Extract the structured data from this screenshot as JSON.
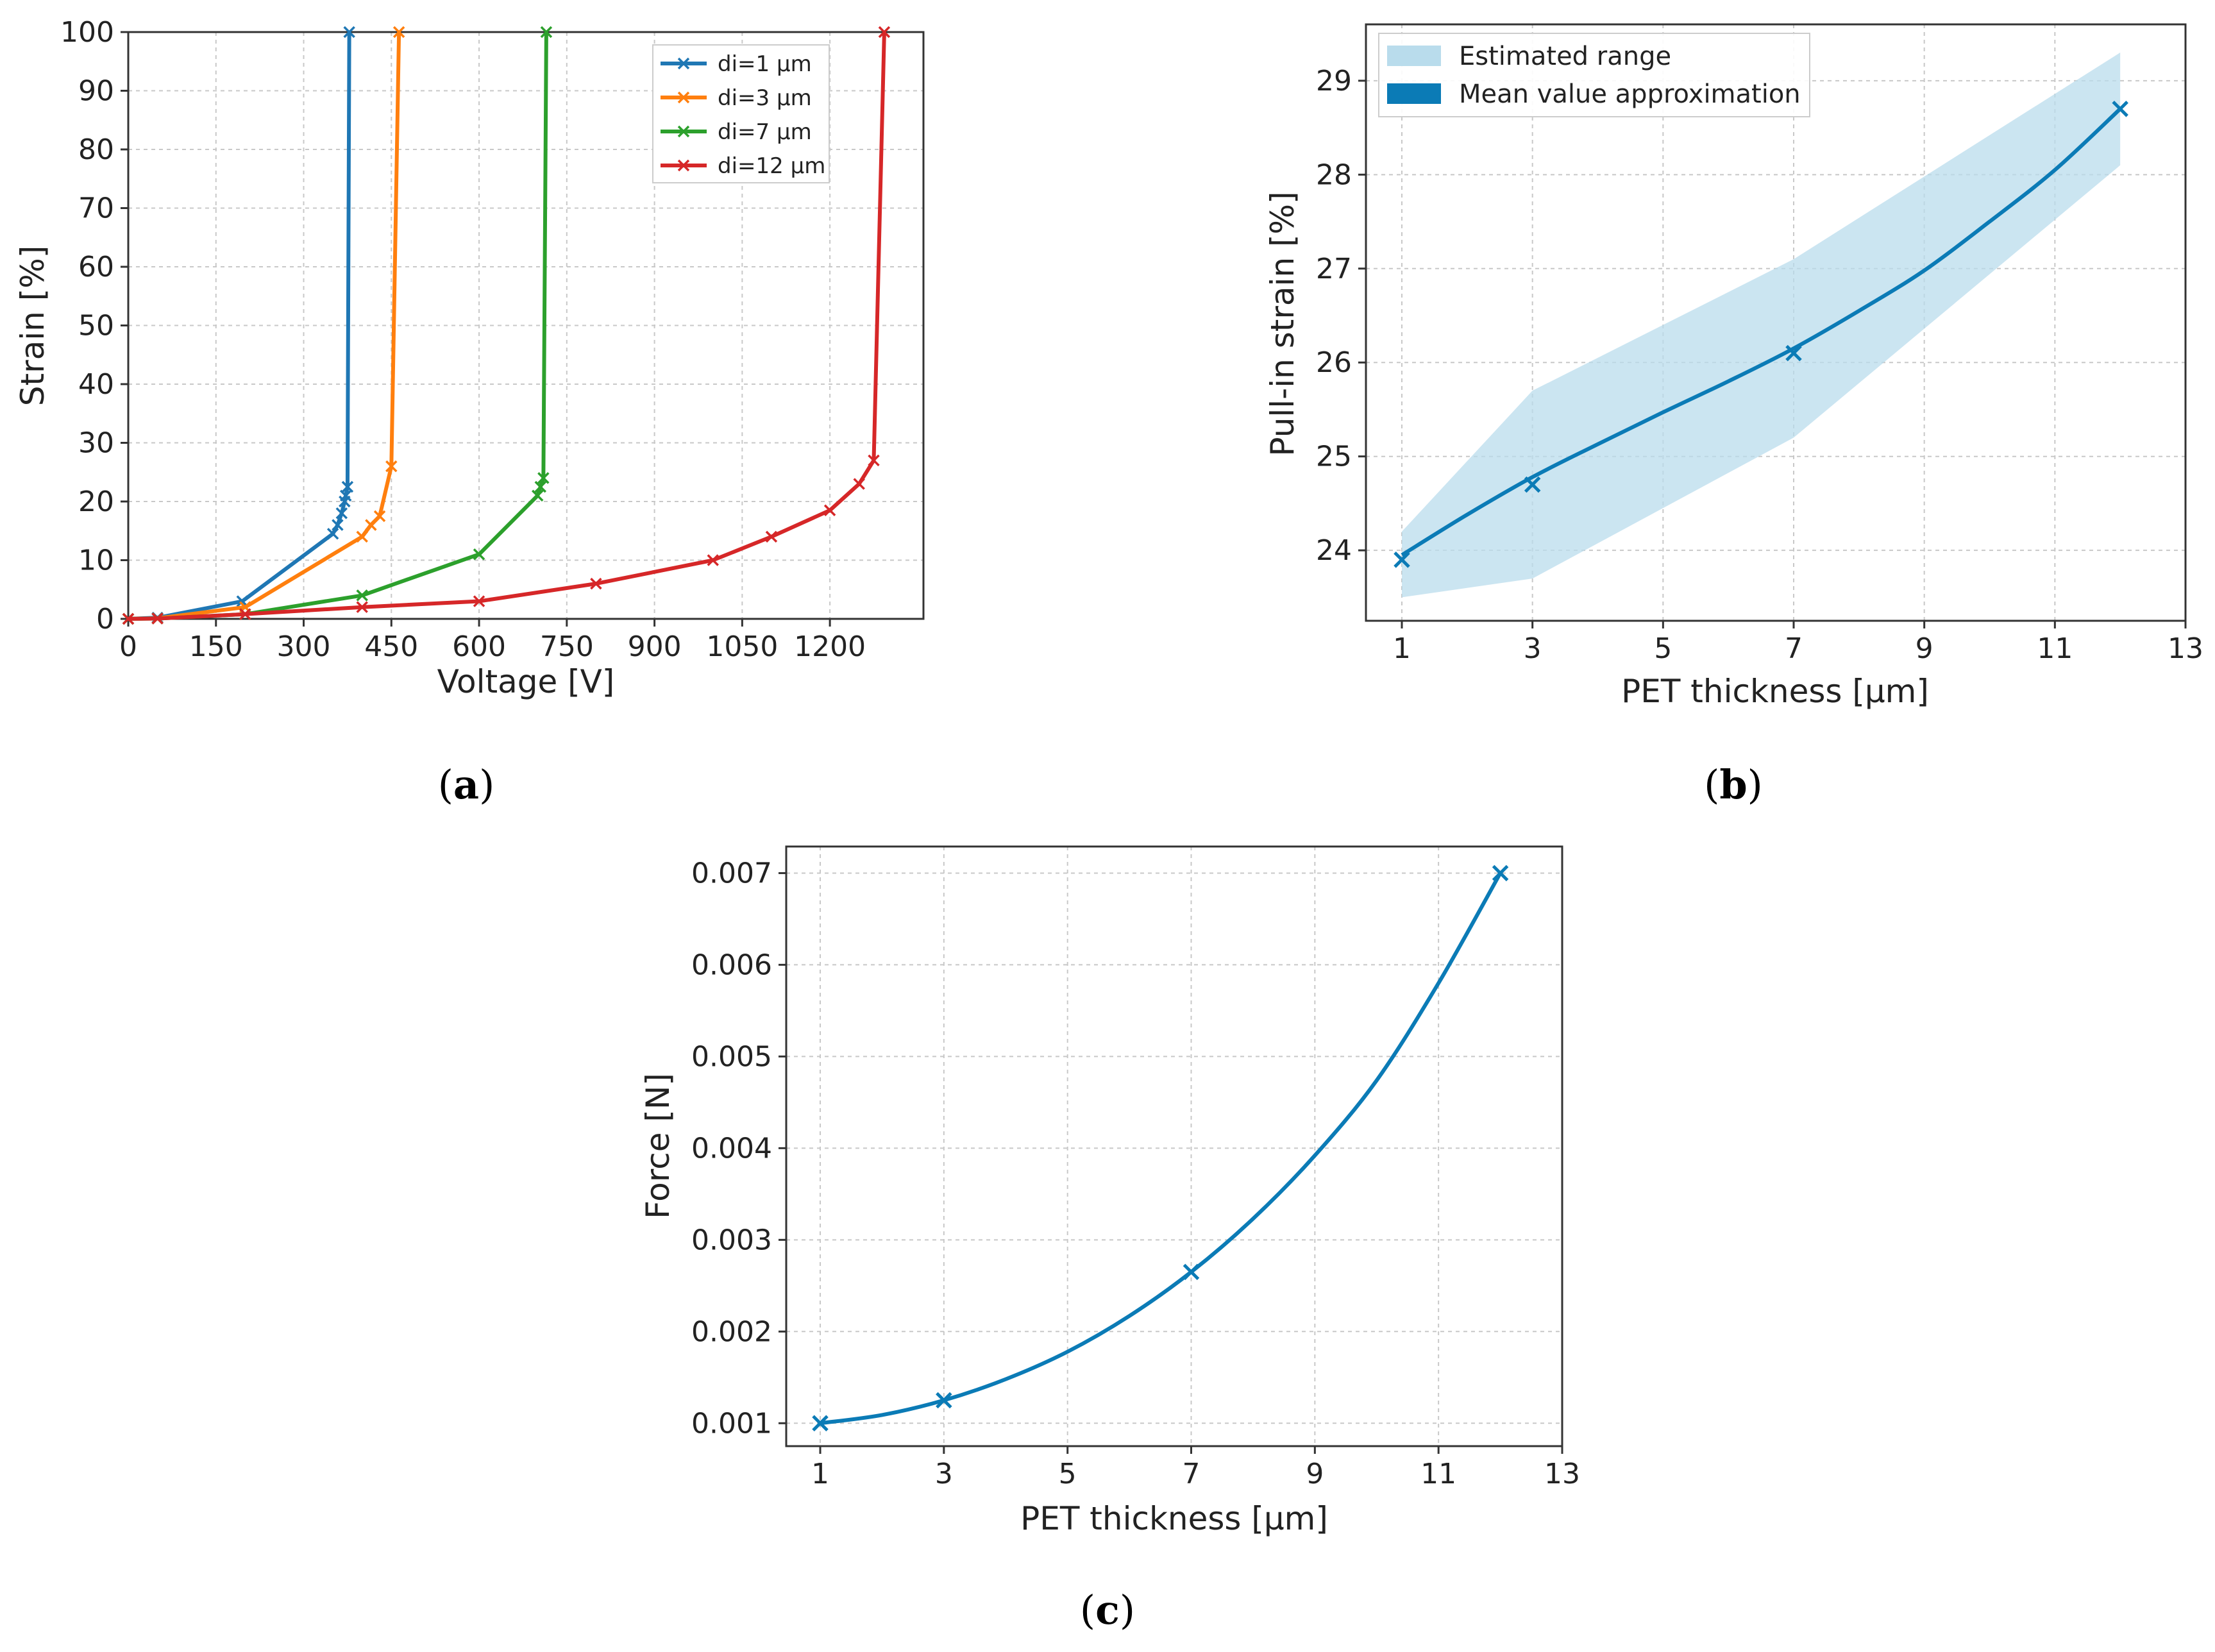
{
  "figure": {
    "colors": {
      "blue": "#1f77b4",
      "orange": "#ff7f0e",
      "green": "#2ca02c",
      "red": "#d62728",
      "fit": "#0b7bb6",
      "band": "#b9dcec"
    },
    "captions": {
      "a": "a",
      "b": "b",
      "c": "c"
    }
  },
  "chart_data": [
    {
      "id": "a",
      "type": "line",
      "xlabel": "Voltage [V]",
      "ylabel": "Strain [%]",
      "xlim": [
        0,
        1360
      ],
      "ylim": [
        0,
        100
      ],
      "xticks": [
        0,
        150,
        300,
        450,
        600,
        750,
        900,
        1050,
        1200
      ],
      "yticks": [
        0,
        10,
        20,
        30,
        40,
        50,
        60,
        70,
        80,
        90,
        100
      ],
      "grid": true,
      "legend_position": "top-right",
      "series": [
        {
          "name": "di=1 μm",
          "color": "#1f77b4",
          "x": [
            0,
            50,
            195,
            350,
            358,
            365,
            370,
            372,
            375,
            378
          ],
          "y": [
            0,
            0.2,
            3,
            14.5,
            16,
            18,
            20,
            21,
            22.5,
            100
          ]
        },
        {
          "name": "di=3 μm",
          "color": "#ff7f0e",
          "x": [
            0,
            50,
            200,
            400,
            415,
            430,
            450,
            463
          ],
          "y": [
            0,
            0.1,
            2,
            14,
            16,
            17.5,
            26,
            100
          ]
        },
        {
          "name": "di=7 μm",
          "color": "#2ca02c",
          "x": [
            0,
            50,
            200,
            400,
            600,
            700,
            705,
            710,
            715
          ],
          "y": [
            0,
            0.05,
            0.8,
            4,
            11,
            21,
            22.5,
            24,
            100
          ]
        },
        {
          "name": "di=12 μm",
          "color": "#d62728",
          "x": [
            0,
            50,
            200,
            400,
            600,
            800,
            1000,
            1100,
            1200,
            1250,
            1275,
            1293
          ],
          "y": [
            0,
            0.05,
            0.8,
            2,
            3,
            6,
            10,
            14,
            18.5,
            23,
            27,
            100
          ]
        }
      ]
    },
    {
      "id": "b",
      "type": "line",
      "xlabel": "PET thickness [μm]",
      "ylabel": "Pull-in strain [%]",
      "xlim": [
        0.45,
        13
      ],
      "ylim": [
        23.25,
        29.6
      ],
      "xticks": [
        1,
        3,
        5,
        7,
        9,
        11,
        13
      ],
      "yticks": [
        24,
        25,
        26,
        27,
        28,
        29
      ],
      "grid": true,
      "legend_position": "top-left",
      "legend": [
        "Estimated range",
        "Mean value approximation"
      ],
      "points": {
        "x": [
          1,
          3,
          7,
          12
        ],
        "y": [
          23.9,
          24.7,
          26.1,
          28.7
        ]
      },
      "band_lower": {
        "x": [
          1,
          3,
          7,
          12
        ],
        "y": [
          23.5,
          23.7,
          25.2,
          28.1
        ]
      },
      "band_upper": {
        "x": [
          1,
          3,
          7,
          12
        ],
        "y": [
          24.2,
          25.7,
          27.1,
          29.3
        ]
      },
      "fit_curve": {
        "x": [
          1,
          2,
          3,
          4,
          5,
          6,
          7,
          8,
          9,
          10,
          11,
          12
        ],
        "y": [
          23.95,
          24.38,
          24.78,
          25.13,
          25.47,
          25.8,
          26.15,
          26.55,
          26.98,
          27.5,
          28.05,
          28.7
        ]
      }
    },
    {
      "id": "c",
      "type": "line",
      "xlabel": "PET thickness [μm]",
      "ylabel": "Force [N]",
      "xlim": [
        0.45,
        13
      ],
      "ylim": [
        0.00075,
        0.00729
      ],
      "xticks": [
        1,
        3,
        5,
        7,
        9,
        11,
        13
      ],
      "yticks": [
        0.001,
        0.002,
        0.003,
        0.004,
        0.005,
        0.006,
        0.007
      ],
      "grid": true,
      "points": {
        "x": [
          1,
          3,
          7,
          12
        ],
        "y": [
          0.001,
          0.00125,
          0.00265,
          0.007
        ]
      },
      "fit_curve": {
        "x": [
          1,
          2,
          3,
          4,
          5,
          6,
          7,
          8,
          9,
          10,
          11,
          12
        ],
        "y": [
          0.001,
          0.00109,
          0.00125,
          0.00148,
          0.00178,
          0.00217,
          0.00265,
          0.00323,
          0.00392,
          0.00474,
          0.0058,
          0.007
        ]
      }
    }
  ]
}
